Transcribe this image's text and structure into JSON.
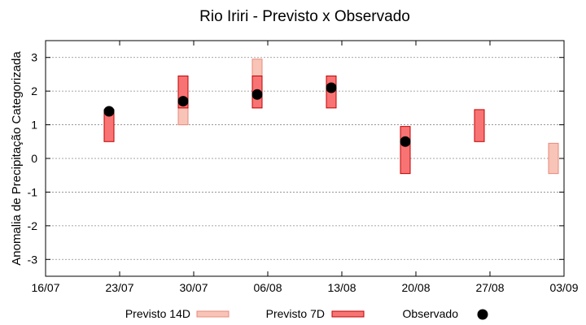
{
  "chart_data": {
    "type": "scatter",
    "title": "Rio Iriri - Previsto x Observado",
    "ylabel": "Anomalia de Precipitação Categorizada",
    "xlabel": "",
    "x_ticks": [
      "16/07",
      "23/07",
      "30/07",
      "06/08",
      "13/08",
      "20/08",
      "27/08",
      "03/09"
    ],
    "y_ticks": [
      3,
      2,
      1,
      0,
      -1,
      -2,
      -3
    ],
    "ylim": [
      -3.5,
      3.5
    ],
    "grid": true,
    "legend_position": "bottom",
    "series": [
      {
        "name": "Previsto 14D",
        "color": "#f8c4b8",
        "stroke": "#e88a7a",
        "kind": "range",
        "points": [
          {
            "x": "29/07",
            "low": 1.0,
            "high": 2.45
          },
          {
            "x": "05/08",
            "low": 1.5,
            "high": 2.95
          },
          {
            "x": "02/09",
            "low": -0.45,
            "high": 0.45
          }
        ]
      },
      {
        "name": "Previsto 7D",
        "color": "#f87474",
        "stroke": "#c00000",
        "kind": "range",
        "points": [
          {
            "x": "22/07",
            "low": 0.5,
            "high": 1.45
          },
          {
            "x": "29/07",
            "low": 1.5,
            "high": 2.45
          },
          {
            "x": "05/08",
            "low": 1.5,
            "high": 2.45
          },
          {
            "x": "12/08",
            "low": 1.5,
            "high": 2.45
          },
          {
            "x": "19/08",
            "low": -0.45,
            "high": 0.95
          },
          {
            "x": "26/08",
            "low": 0.5,
            "high": 1.45
          }
        ]
      },
      {
        "name": "Observado",
        "color": "#000000",
        "kind": "point",
        "points": [
          {
            "x": "22/07",
            "y": 1.4
          },
          {
            "x": "29/07",
            "y": 1.7
          },
          {
            "x": "05/08",
            "y": 1.9
          },
          {
            "x": "12/08",
            "y": 2.1
          },
          {
            "x": "19/08",
            "y": 0.5
          }
        ]
      }
    ]
  }
}
